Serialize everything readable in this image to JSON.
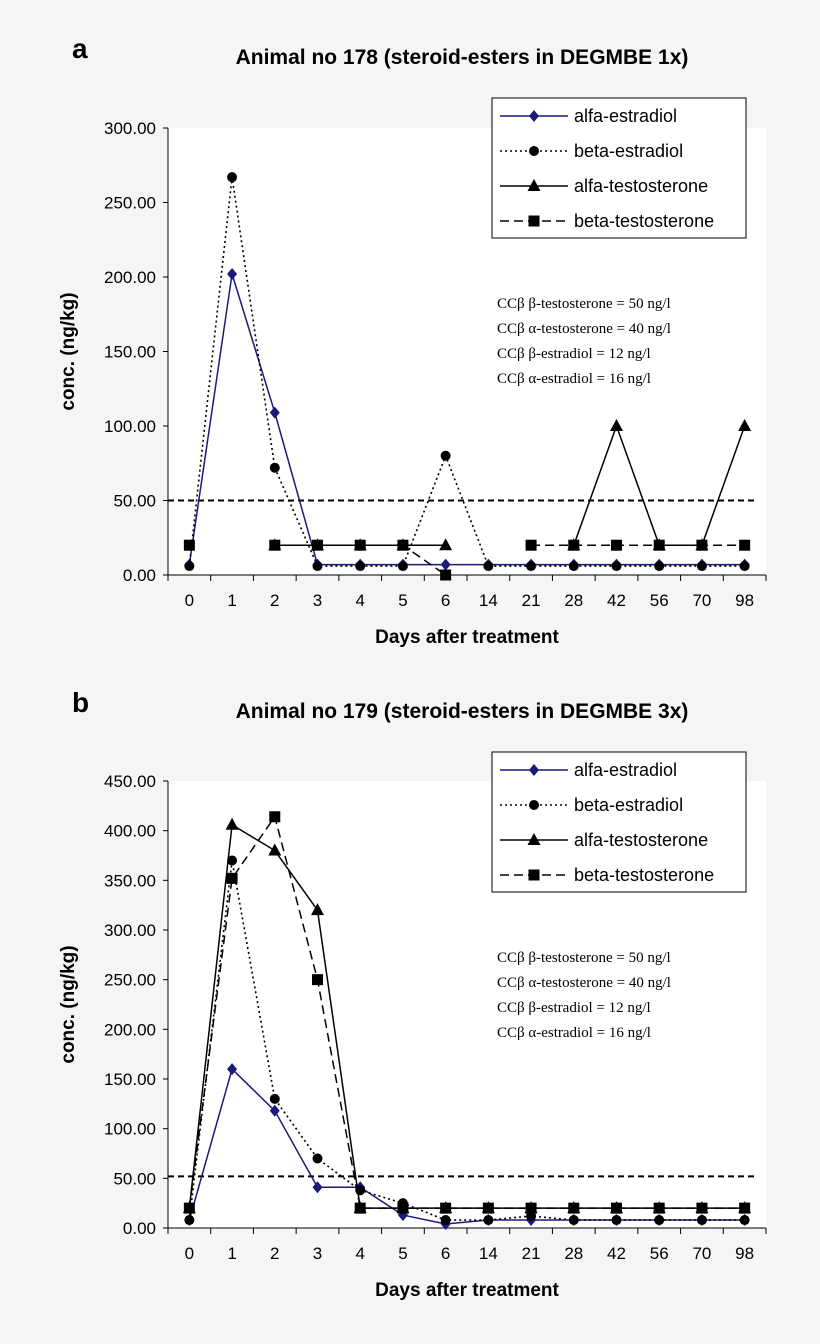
{
  "chart_data": [
    {
      "type": "line",
      "panel_label": "a",
      "title": "Animal no 178 (steroid-esters in DEGMBE 1x)",
      "xlabel": "Days after treatment",
      "ylabel": "conc. (ng/kg)",
      "ylim": [
        0,
        300
      ],
      "yticks": [
        "0.00",
        "50.00",
        "100.00",
        "150.00",
        "200.00",
        "250.00",
        "300.00"
      ],
      "categories": [
        "0",
        "1",
        "2",
        "3",
        "4",
        "5",
        "6",
        "14",
        "21",
        "28",
        "42",
        "56",
        "70",
        "98"
      ],
      "reference_line": 50,
      "legend_placement": "top-right",
      "grid": false,
      "series": [
        {
          "name": "alfa-estradiol",
          "color": "#1a1a7a",
          "dash": "solid",
          "marker": "diamond",
          "values": [
            7,
            202,
            109,
            7,
            7,
            7,
            7,
            7,
            7,
            7,
            7,
            7,
            7,
            7
          ]
        },
        {
          "name": "beta-estradiol",
          "color": "#000000",
          "dash": "dotted",
          "marker": "circle",
          "values": [
            6,
            267,
            72,
            6,
            6,
            6,
            80,
            6,
            6,
            6,
            6,
            6,
            6,
            6
          ]
        },
        {
          "name": "alfa-testosterone",
          "color": "#000000",
          "dash": "solid",
          "marker": "triangle",
          "values": [
            null,
            null,
            20,
            20,
            20,
            20,
            20,
            null,
            null,
            20,
            100,
            20,
            20,
            100
          ]
        },
        {
          "name": "beta-testosterone",
          "color": "#000000",
          "dash": "dashed",
          "marker": "square",
          "values": [
            20,
            null,
            20,
            20,
            20,
            20,
            0,
            null,
            20,
            20,
            20,
            20,
            20,
            20
          ]
        }
      ],
      "annotations": [
        "CCβ β-testosterone = 50 ng/l",
        "CCβ α-testosterone = 40 ng/l",
        "CCβ β-estradiol = 12 ng/l",
        "CCβ α-estradiol = 16 ng/l"
      ]
    },
    {
      "type": "line",
      "panel_label": "b",
      "title": "Animal no 179 (steroid-esters in DEGMBE 3x)",
      "xlabel": "Days after treatment",
      "ylabel": "conc. (ng/kg)",
      "ylim": [
        0,
        450
      ],
      "yticks": [
        "0.00",
        "50.00",
        "100.00",
        "150.00",
        "200.00",
        "250.00",
        "300.00",
        "350.00",
        "400.00",
        "450.00"
      ],
      "categories": [
        "0",
        "1",
        "2",
        "3",
        "4",
        "5",
        "6",
        "14",
        "21",
        "28",
        "42",
        "56",
        "70",
        "98"
      ],
      "reference_line": 52,
      "legend_placement": "top-right",
      "grid": false,
      "series": [
        {
          "name": "alfa-estradiol",
          "color": "#1a1a7a",
          "dash": "solid",
          "marker": "diamond",
          "values": [
            8,
            160,
            118,
            41,
            41,
            13,
            4,
            8,
            8,
            8,
            8,
            8,
            8,
            8
          ]
        },
        {
          "name": "beta-estradiol",
          "color": "#000000",
          "dash": "dotted",
          "marker": "circle",
          "values": [
            8,
            370,
            130,
            70,
            38,
            25,
            8,
            8,
            12,
            8,
            8,
            8,
            8,
            8
          ]
        },
        {
          "name": "alfa-testosterone",
          "color": "#000000",
          "dash": "solid",
          "marker": "triangle",
          "values": [
            20,
            406,
            380,
            320,
            20,
            20,
            20,
            20,
            20,
            20,
            20,
            20,
            20,
            20
          ]
        },
        {
          "name": "beta-testosterone",
          "color": "#000000",
          "dash": "dashed",
          "marker": "square",
          "values": [
            20,
            352,
            414,
            250,
            20,
            20,
            20,
            20,
            20,
            20,
            20,
            20,
            20,
            20
          ]
        }
      ],
      "annotations": [
        "CCβ β-testosterone = 50 ng/l",
        "CCβ α-testosterone = 40 ng/l",
        "CCβ β-estradiol = 12 ng/l",
        "CCβ α-estradiol = 16 ng/l"
      ]
    }
  ]
}
